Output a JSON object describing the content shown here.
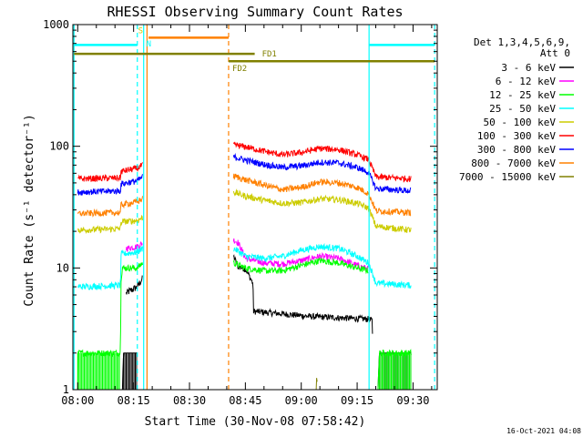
{
  "chart_data": {
    "type": "line",
    "title": "RHESSI Observing Summary Count Rates",
    "xlabel": "Start Time (30-Nov-08 07:58:42)",
    "ylabel": "Count Rate (s⁻¹ detector⁻¹)",
    "ylog": true,
    "ylim": [
      1,
      1000
    ],
    "xlim_minutes": [
      -1.3,
      96.5
    ],
    "x_ticks": [
      {
        "m": 0,
        "label": "08:00"
      },
      {
        "m": 15,
        "label": "08:15"
      },
      {
        "m": 30,
        "label": "08:30"
      },
      {
        "m": 45,
        "label": "08:45"
      },
      {
        "m": 60,
        "label": "09:00"
      },
      {
        "m": 75,
        "label": "09:15"
      },
      {
        "m": 90,
        "label": "09:30"
      }
    ],
    "y_ticks": [
      {
        "v": 1,
        "label": "1"
      },
      {
        "v": 10,
        "label": "10"
      },
      {
        "v": 100,
        "label": "100"
      },
      {
        "v": 1000,
        "label": "1000"
      }
    ],
    "legend": {
      "header": [
        "Det 1,3,4,5,6,9,",
        "Att 0"
      ],
      "placement": "right"
    },
    "series": [
      {
        "name": "3 - 6 keV",
        "color": "#000000",
        "segments": [
          {
            "points": [
              [
                12,
                1.0
              ],
              [
                12.3,
                2.0
              ],
              [
                13,
                2.0
              ],
              [
                14,
                2.0
              ],
              [
                16,
                2.0
              ]
            ],
            "tail": [
              [
                13,
                6.2
              ],
              [
                16,
                7.0
              ],
              [
                17.4,
                8.2
              ]
            ],
            "tail_start": 13
          },
          {
            "points": [
              [
                41.8,
                12.5
              ],
              [
                43,
                10.3
              ],
              [
                45,
                9.8
              ],
              [
                47,
                7.5
              ],
              [
                47.2,
                4.4
              ],
              [
                55,
                4.2
              ],
              [
                62,
                4.0
              ],
              [
                70,
                3.9
              ],
              [
                78,
                3.8
              ],
              [
                79,
                3.7
              ],
              [
                79.2,
                2.4
              ]
            ]
          },
          {
            "points": [
              [
                80.6,
                1.0
              ],
              [
                81,
                2.0
              ],
              [
                89.5,
                2.0
              ]
            ]
          }
        ]
      },
      {
        "name": "6 - 12 keV",
        "color": "#ff00ff",
        "segments": [
          {
            "points": [
              [
                13,
                14.5
              ],
              [
                16,
                15.0
              ],
              [
                17.4,
                16.0
              ]
            ]
          },
          {
            "points": [
              [
                41.8,
                17.0
              ],
              [
                43,
                16.2
              ],
              [
                45,
                12.0
              ],
              [
                50,
                11.0
              ],
              [
                55,
                10.8
              ],
              [
                60,
                11.5
              ],
              [
                65,
                12.5
              ],
              [
                70,
                12.0
              ],
              [
                75,
                10.5
              ],
              [
                78,
                9.8
              ]
            ]
          }
        ]
      },
      {
        "name": "12 - 25 keV",
        "color": "#00ff00",
        "segments": [
          {
            "points": [
              [
                0,
                1.0
              ],
              [
                0,
                2.0
              ],
              [
                11.5,
                2.0
              ],
              [
                11.6,
                8.0
              ],
              [
                12,
                10.0
              ],
              [
                16,
                10.0
              ],
              [
                17.4,
                11.0
              ]
            ]
          },
          {
            "points": [
              [
                41.8,
                11.0
              ],
              [
                45,
                10.0
              ],
              [
                50,
                9.5
              ],
              [
                55,
                9.5
              ],
              [
                60,
                10.5
              ],
              [
                65,
                11.5
              ],
              [
                70,
                11.0
              ],
              [
                75,
                10.0
              ],
              [
                78,
                9.5
              ]
            ]
          },
          {
            "points": [
              [
                80.6,
                1.0
              ],
              [
                81,
                2.0
              ],
              [
                89.5,
                2.0
              ]
            ]
          }
        ]
      },
      {
        "name": "25 - 50 keV",
        "color": "#00ffff",
        "segments": [
          {
            "points": [
              [
                0,
                7.0
              ],
              [
                11.5,
                7.2
              ],
              [
                11.6,
                13.0
              ],
              [
                16,
                13.5
              ],
              [
                17.4,
                14.5
              ]
            ]
          },
          {
            "points": [
              [
                41.8,
                14.5
              ],
              [
                45,
                12.5
              ],
              [
                50,
                12.0
              ],
              [
                55,
                12.5
              ],
              [
                60,
                14.0
              ],
              [
                65,
                15.0
              ],
              [
                70,
                14.5
              ],
              [
                75,
                12.5
              ],
              [
                78,
                11.0
              ],
              [
                80,
                7.5
              ],
              [
                89.5,
                7.2
              ]
            ]
          }
        ]
      },
      {
        "name": "50 - 100 keV",
        "color": "#cccc00",
        "segments": [
          {
            "points": [
              [
                0,
                20.5
              ],
              [
                11.5,
                21.0
              ],
              [
                11.6,
                24.0
              ],
              [
                16,
                24.5
              ],
              [
                17.4,
                26.0
              ]
            ]
          },
          {
            "points": [
              [
                41.8,
                42.0
              ],
              [
                45,
                39.0
              ],
              [
                50,
                36.0
              ],
              [
                55,
                34.0
              ],
              [
                60,
                34.5
              ],
              [
                65,
                37.0
              ],
              [
                70,
                36.5
              ],
              [
                75,
                34.0
              ],
              [
                78,
                31.0
              ],
              [
                80,
                22.0
              ],
              [
                89.5,
                20.5
              ]
            ]
          }
        ]
      },
      {
        "name": "100 - 300 keV",
        "color": "#ff0000",
        "segments": [
          {
            "points": [
              [
                0,
                54.0
              ],
              [
                11.5,
                55.0
              ],
              [
                11.6,
                62.0
              ],
              [
                16,
                66.0
              ],
              [
                17.4,
                70.0
              ]
            ]
          },
          {
            "points": [
              [
                41.8,
                103.0
              ],
              [
                45,
                99.0
              ],
              [
                50,
                91.0
              ],
              [
                55,
                85.0
              ],
              [
                60,
                89.0
              ],
              [
                65,
                96.0
              ],
              [
                70,
                94.0
              ],
              [
                75,
                85.0
              ],
              [
                78,
                78.0
              ],
              [
                80,
                56.0
              ],
              [
                89.5,
                54.0
              ]
            ]
          }
        ]
      },
      {
        "name": "300 - 800 keV",
        "color": "#0000ff",
        "segments": [
          {
            "points": [
              [
                0,
                42.0
              ],
              [
                11.5,
                43.0
              ],
              [
                11.6,
                49.0
              ],
              [
                16,
                52.0
              ],
              [
                17.4,
                56.0
              ]
            ]
          },
          {
            "points": [
              [
                41.8,
                82.0
              ],
              [
                45,
                77.0
              ],
              [
                50,
                71.0
              ],
              [
                55,
                67.0
              ],
              [
                60,
                69.0
              ],
              [
                65,
                74.0
              ],
              [
                70,
                73.0
              ],
              [
                75,
                67.0
              ],
              [
                78,
                61.0
              ],
              [
                80,
                45.0
              ],
              [
                89.5,
                43.0
              ]
            ]
          }
        ]
      },
      {
        "name": "800 - 7000 keV",
        "color": "#ff8000",
        "segments": [
          {
            "points": [
              [
                0,
                28.0
              ],
              [
                11.5,
                28.5
              ],
              [
                11.6,
                33.0
              ],
              [
                16,
                35.0
              ],
              [
                17.4,
                37.0
              ]
            ]
          },
          {
            "points": [
              [
                41.8,
                57.0
              ],
              [
                45,
                53.0
              ],
              [
                50,
                48.0
              ],
              [
                55,
                44.0
              ],
              [
                60,
                46.0
              ],
              [
                65,
                51.0
              ],
              [
                70,
                50.0
              ],
              [
                75,
                46.0
              ],
              [
                78,
                41.0
              ],
              [
                80,
                29.5
              ],
              [
                89.5,
                28.5
              ]
            ]
          }
        ]
      },
      {
        "name": "7000 - 15000 keV",
        "color": "#808000",
        "segments": [
          {
            "points": [
              [
                64,
                1.0
              ],
              [
                64,
                1.5
              ],
              [
                64.3,
                1.0
              ]
            ]
          }
        ]
      }
    ],
    "annotations": [
      {
        "type": "vline",
        "m": -1.0,
        "color": "#00ffff",
        "dashed": false
      },
      {
        "type": "vline",
        "m": 16.0,
        "color": "#00ffff",
        "dashed": true
      },
      {
        "type": "vline",
        "m": 17.7,
        "color": "#00ffff",
        "dashed": false
      },
      {
        "type": "vline",
        "m": 18.6,
        "color": "#ff8000",
        "dashed": false
      },
      {
        "type": "vline",
        "m": 40.5,
        "color": "#ff8000",
        "dashed": true
      },
      {
        "type": "vline",
        "m": 78.2,
        "color": "#00ffff",
        "dashed": false
      },
      {
        "type": "vline",
        "m": 95.8,
        "color": "#00ffff",
        "dashed": true
      },
      {
        "type": "hbar",
        "m1": -1.0,
        "m2": 16.0,
        "v": 680,
        "color": "#00ffff",
        "label": ""
      },
      {
        "type": "hbar",
        "m1": 78.2,
        "m2": 95.8,
        "v": 680,
        "color": "#00ffff",
        "label": ""
      },
      {
        "type": "hbar",
        "m1": 19.0,
        "m2": 40.5,
        "v": 780,
        "color": "#ff8000",
        "label": ""
      },
      {
        "type": "hbar",
        "m1": -1.0,
        "m2": 47.5,
        "v": 575,
        "color": "#808000",
        "label": "FD1"
      },
      {
        "type": "hbar",
        "m1": 40.5,
        "m2": 95.8,
        "v": 500,
        "color": "#808000",
        "label": "FD2"
      },
      {
        "type": "marker",
        "m": 16.2,
        "v": 850,
        "color": "#cccc00",
        "label": "S"
      },
      {
        "type": "marker",
        "m": 18.4,
        "v": 660,
        "color": "#00ffff",
        "label": "N"
      }
    ]
  },
  "footer_stamp": "16-Oct-2021 04:08"
}
